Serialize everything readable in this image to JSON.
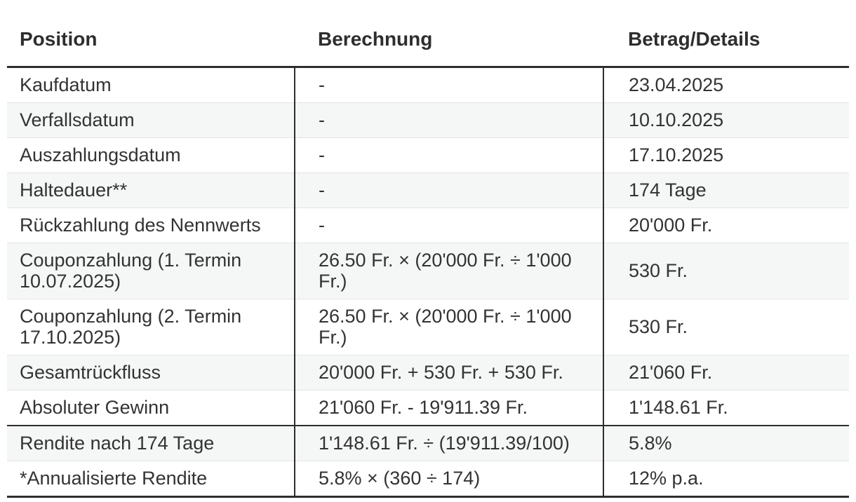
{
  "table": {
    "columns": [
      "Position",
      "Berechnung",
      "Betrag/Details"
    ],
    "rows": [
      {
        "position": "Kaufdatum",
        "calculation": "-",
        "amount": "23.04.2025"
      },
      {
        "position": "Verfallsdatum",
        "calculation": "-",
        "amount": "10.10.2025"
      },
      {
        "position": "Auszahlungsdatum",
        "calculation": "-",
        "amount": "17.10.2025"
      },
      {
        "position": "Haltedauer**",
        "calculation": "-",
        "amount": "174 Tage"
      },
      {
        "position": "Rückzahlung des Nennwerts",
        "calculation": "-",
        "amount": "20'000 Fr."
      },
      {
        "position": "Couponzahlung (1. Termin 10.07.2025)",
        "calculation": "26.50 Fr. × (20'000 Fr. ÷ 1'000 Fr.)",
        "amount": "530 Fr."
      },
      {
        "position": "Couponzahlung (2. Termin 17.10.2025)",
        "calculation": "26.50 Fr. × (20'000 Fr. ÷ 1'000 Fr.)",
        "amount": "530 Fr."
      },
      {
        "position": "Gesamtrückfluss",
        "calculation": "20'000 Fr. + 530 Fr. + 530 Fr.",
        "amount": "21'060 Fr."
      },
      {
        "position": "Absoluter Gewinn",
        "calculation": "21'060 Fr. - 19'911.39 Fr.",
        "amount": "1'148.61 Fr."
      },
      {
        "position": "Rendite nach 174 Tage",
        "calculation": "1'148.61 Fr. ÷ (19'911.39/100)",
        "amount": "5.8%",
        "section_break": true
      },
      {
        "position": "*Annualisierte Rendite",
        "calculation": "5.8% × (360 ÷ 174)",
        "amount": "12% p.a."
      }
    ],
    "colors": {
      "text": "#333333",
      "border_strong": "#2e2e2e",
      "row_separator": "#e4e4e4",
      "row_stripe": "#f5f6f6",
      "background": "#ffffff"
    }
  }
}
